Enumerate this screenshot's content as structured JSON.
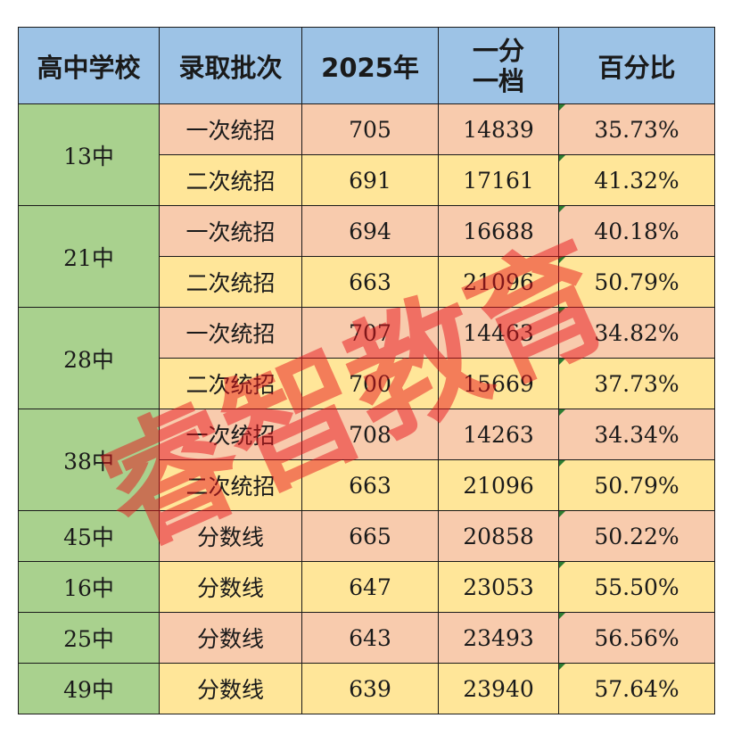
{
  "table": {
    "headers": {
      "school": "高中学校",
      "batch": "录取批次",
      "year": "2025年",
      "rank_line1": "一分",
      "rank_line2": "一档",
      "percent": "百分比"
    },
    "rows": [
      {
        "school": "13中",
        "batch": "一次统招",
        "score": "705",
        "rank": "14839",
        "percent": "35.73%"
      },
      {
        "school": "13中",
        "batch": "二次统招",
        "score": "691",
        "rank": "17161",
        "percent": "41.32%"
      },
      {
        "school": "21中",
        "batch": "一次统招",
        "score": "694",
        "rank": "16688",
        "percent": "40.18%"
      },
      {
        "school": "21中",
        "batch": "二次统招",
        "score": "663",
        "rank": "21096",
        "percent": "50.79%"
      },
      {
        "school": "28中",
        "batch": "一次统招",
        "score": "707",
        "rank": "14463",
        "percent": "34.82%"
      },
      {
        "school": "28中",
        "batch": "二次统招",
        "score": "700",
        "rank": "15669",
        "percent": "37.73%"
      },
      {
        "school": "38中",
        "batch": "一次统招",
        "score": "708",
        "rank": "14263",
        "percent": "34.34%"
      },
      {
        "school": "38中",
        "batch": "二次统招",
        "score": "663",
        "rank": "21096",
        "percent": "50.79%"
      },
      {
        "school": "45中",
        "batch": "分数线",
        "score": "665",
        "rank": "20858",
        "percent": "50.22%"
      },
      {
        "school": "16中",
        "batch": "分数线",
        "score": "647",
        "rank": "23053",
        "percent": "55.50%"
      },
      {
        "school": "25中",
        "batch": "分数线",
        "score": "643",
        "rank": "23493",
        "percent": "56.56%"
      },
      {
        "school": "49中",
        "batch": "分数线",
        "score": "639",
        "rank": "23940",
        "percent": "57.64%"
      }
    ]
  },
  "watermark": {
    "text": "睿智教育"
  },
  "colors": {
    "header": "#9dc3e6",
    "school_cell": "#a9d18e",
    "row_salmon": "#f8cbad",
    "row_yellow": "#ffe699",
    "watermark": "#e8141a"
  }
}
